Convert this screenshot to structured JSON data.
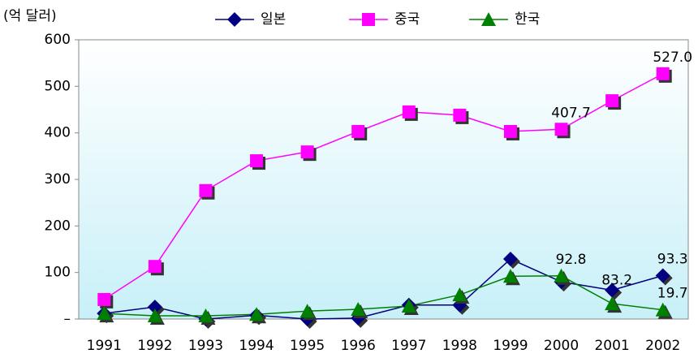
{
  "chart_data": {
    "type": "line",
    "y_label": "(억 달러)",
    "categories": [
      "1991",
      "1992",
      "1993",
      "1994",
      "1995",
      "1996",
      "1997",
      "1998",
      "1999",
      "2000",
      "2001",
      "2002"
    ],
    "series": [
      {
        "name": "일본",
        "color": "#000080",
        "marker": "diamond",
        "values": [
          12,
          26,
          0,
          8,
          0,
          2,
          30,
          30,
          129,
          80,
          62,
          93.3
        ],
        "value_labels": [
          null,
          null,
          null,
          null,
          null,
          null,
          null,
          null,
          null,
          null,
          null,
          "93.3"
        ]
      },
      {
        "name": "중국",
        "color": "#ff00ff",
        "marker": "square",
        "values": [
          42,
          113,
          276,
          340,
          359,
          403,
          445,
          438,
          403,
          407.7,
          469,
          527.0
        ],
        "value_labels": [
          null,
          null,
          null,
          null,
          null,
          null,
          null,
          null,
          null,
          "407.7",
          null,
          "527.0"
        ]
      },
      {
        "name": "한국",
        "color": "#008000",
        "marker": "triangle",
        "values": [
          12,
          7,
          7,
          10,
          17,
          21,
          28,
          52,
          92,
          92.8,
          33,
          19.7
        ],
        "value_labels": [
          null,
          null,
          null,
          null,
          null,
          null,
          null,
          null,
          null,
          "92.8",
          null,
          "19.7"
        ]
      }
    ],
    "annotations": [
      {
        "text": "83.2",
        "category": "2001"
      }
    ],
    "ylim": [
      0,
      600
    ],
    "yticks": [
      {
        "value": 0,
        "label": "–"
      },
      100,
      200,
      300,
      400,
      500,
      600
    ],
    "legend": "top"
  }
}
